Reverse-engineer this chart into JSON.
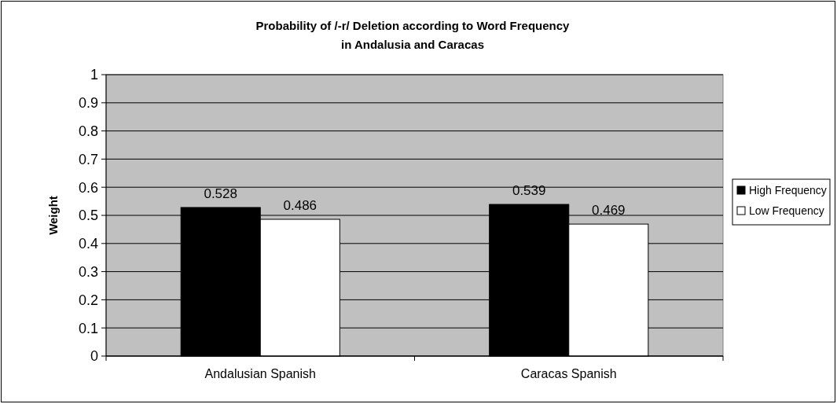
{
  "chart_data": {
    "type": "bar",
    "title": "Probability of /-r/ Deletion according to Word Frequency\nin Andalusia and Caracas",
    "ylabel": "Weight",
    "categories": [
      "Andalusian Spanish",
      "Caracas Spanish"
    ],
    "series": [
      {
        "name": "High Frequency",
        "color": "#000000",
        "values": [
          0.528,
          0.539
        ]
      },
      {
        "name": "Low Frequency",
        "color": "#ffffff",
        "values": [
          0.486,
          0.469
        ]
      }
    ],
    "ylim": [
      0,
      1
    ],
    "yticks": [
      0,
      0.1,
      0.2,
      0.3,
      0.4,
      0.5,
      0.6,
      0.7,
      0.8,
      0.9,
      1
    ],
    "grid": "y",
    "legend": "right",
    "data_labels": true
  }
}
